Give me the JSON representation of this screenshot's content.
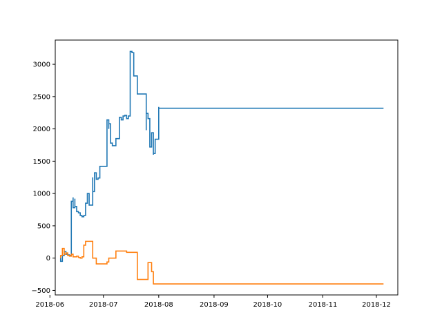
{
  "chart_data": {
    "type": "line",
    "title": "",
    "xlabel": "",
    "ylabel": "",
    "x_axis": {
      "kind": "date",
      "range": [
        "2018-06-04",
        "2018-12-13"
      ],
      "ticks": [
        {
          "label": "2018-06",
          "date": "2018-06-01"
        },
        {
          "label": "2018-07",
          "date": "2018-07-01"
        },
        {
          "label": "2018-08",
          "date": "2018-08-01"
        },
        {
          "label": "2018-09",
          "date": "2018-09-01"
        },
        {
          "label": "2018-10",
          "date": "2018-10-01"
        },
        {
          "label": "2018-11",
          "date": "2018-11-01"
        },
        {
          "label": "2018-12",
          "date": "2018-12-01"
        }
      ]
    },
    "y_axis": {
      "range": [
        -570,
        3375
      ],
      "ticks": [
        {
          "label": "−500",
          "value": -500
        },
        {
          "label": "0",
          "value": 0
        },
        {
          "label": "500",
          "value": 500
        },
        {
          "label": "1000",
          "value": 1000
        },
        {
          "label": "1500",
          "value": 1500
        },
        {
          "label": "2000",
          "value": 2000
        },
        {
          "label": "2500",
          "value": 2500
        },
        {
          "label": "3000",
          "value": 3000
        }
      ]
    },
    "grid": false,
    "legend": "none",
    "series": [
      {
        "color": "#1f77b4",
        "step": true,
        "points": [
          [
            "2018-06-07",
            0
          ],
          [
            "2018-06-07",
            -50
          ],
          [
            "2018-06-08",
            40
          ],
          [
            "2018-06-09",
            100
          ],
          [
            "2018-06-10",
            60
          ],
          [
            "2018-06-11",
            50
          ],
          [
            "2018-06-12",
            40
          ],
          [
            "2018-06-13",
            880
          ],
          [
            "2018-06-14",
            940
          ],
          [
            "2018-06-14",
            780
          ],
          [
            "2018-06-15",
            920
          ],
          [
            "2018-06-15",
            800
          ],
          [
            "2018-06-16",
            720
          ],
          [
            "2018-06-17",
            700
          ],
          [
            "2018-06-18",
            660
          ],
          [
            "2018-06-19",
            640
          ],
          [
            "2018-06-20",
            660
          ],
          [
            "2018-06-21",
            850
          ],
          [
            "2018-06-22",
            920
          ],
          [
            "2018-06-22",
            1000
          ],
          [
            "2018-06-23",
            820
          ],
          [
            "2018-06-25",
            1250
          ],
          [
            "2018-06-25",
            1030
          ],
          [
            "2018-06-26",
            1320
          ],
          [
            "2018-06-27",
            1220
          ],
          [
            "2018-06-28",
            1240
          ],
          [
            "2018-06-29",
            1420
          ],
          [
            "2018-07-03",
            2100
          ],
          [
            "2018-07-03",
            2140
          ],
          [
            "2018-07-04",
            2000
          ],
          [
            "2018-07-04",
            2080
          ],
          [
            "2018-07-05",
            1780
          ],
          [
            "2018-07-06",
            1740
          ],
          [
            "2018-07-08",
            1850
          ],
          [
            "2018-07-10",
            2180
          ],
          [
            "2018-07-11",
            2140
          ],
          [
            "2018-07-12",
            2200
          ],
          [
            "2018-07-13",
            2210
          ],
          [
            "2018-07-14",
            2160
          ],
          [
            "2018-07-15",
            2200
          ],
          [
            "2018-07-16",
            3200
          ],
          [
            "2018-07-17",
            3180
          ],
          [
            "2018-07-18",
            2820
          ],
          [
            "2018-07-20",
            2540
          ],
          [
            "2018-07-25",
            1980
          ],
          [
            "2018-07-25",
            2240
          ],
          [
            "2018-07-26",
            2160
          ],
          [
            "2018-07-27",
            1720
          ],
          [
            "2018-07-28",
            1940
          ],
          [
            "2018-07-29",
            1600
          ],
          [
            "2018-07-29",
            1620
          ],
          [
            "2018-07-30",
            1700
          ],
          [
            "2018-07-30",
            1840
          ],
          [
            "2018-08-01",
            2340
          ],
          [
            "2018-08-01",
            2320
          ],
          [
            "2018-12-05",
            2320
          ]
        ]
      },
      {
        "color": "#ff7f0e",
        "step": true,
        "points": [
          [
            "2018-06-07",
            0
          ],
          [
            "2018-06-07",
            40
          ],
          [
            "2018-06-08",
            100
          ],
          [
            "2018-06-08",
            150
          ],
          [
            "2018-06-09",
            60
          ],
          [
            "2018-06-10",
            80
          ],
          [
            "2018-06-11",
            40
          ],
          [
            "2018-06-12",
            30
          ],
          [
            "2018-06-13",
            60
          ],
          [
            "2018-06-14",
            20
          ],
          [
            "2018-06-16",
            30
          ],
          [
            "2018-06-17",
            10
          ],
          [
            "2018-06-18",
            0
          ],
          [
            "2018-06-19",
            20
          ],
          [
            "2018-06-20",
            200
          ],
          [
            "2018-06-21",
            260
          ],
          [
            "2018-06-25",
            0
          ],
          [
            "2018-06-27",
            -90
          ],
          [
            "2018-07-03",
            -60
          ],
          [
            "2018-07-04",
            0
          ],
          [
            "2018-07-08",
            110
          ],
          [
            "2018-07-14",
            90
          ],
          [
            "2018-07-20",
            -330
          ],
          [
            "2018-07-26",
            -70
          ],
          [
            "2018-07-28",
            -210
          ],
          [
            "2018-07-29",
            -400
          ],
          [
            "2018-12-05",
            -400
          ]
        ]
      }
    ]
  }
}
